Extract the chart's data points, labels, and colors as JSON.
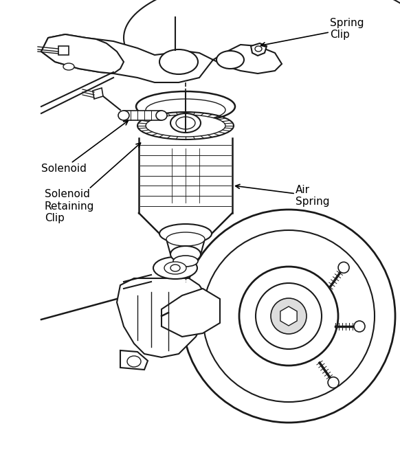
{
  "background_color": "#ffffff",
  "line_color": "#1a1a1a",
  "annotation_color": "#000000",
  "labels": {
    "spring_clip": "Spring\nClip",
    "solenoid": "Solenoid",
    "solenoid_retaining_clip": "Solenoid\nRetaining\nClip",
    "air_spring": "Air\nSpring"
  },
  "figsize": [
    5.82,
    6.68
  ],
  "dpi": 100
}
